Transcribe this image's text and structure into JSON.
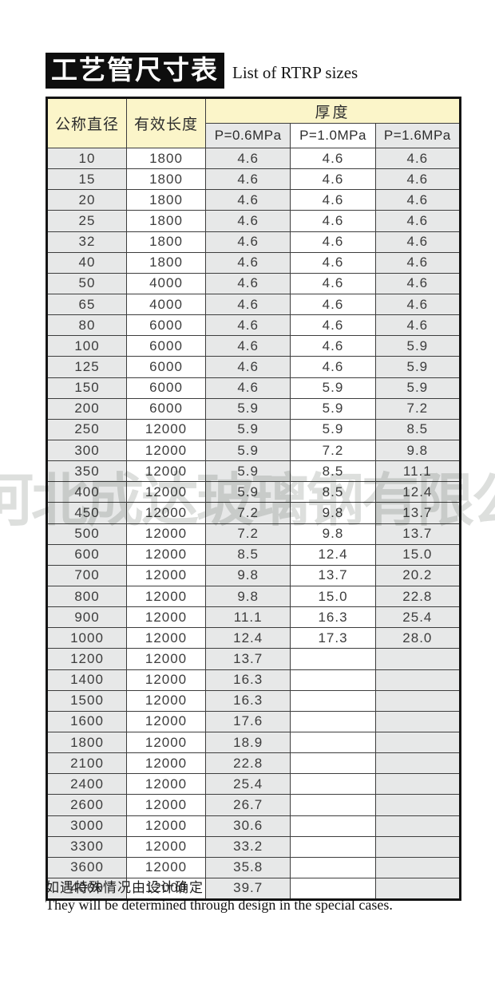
{
  "title": {
    "zh": "工艺管尺寸表",
    "en": "List of RTRP sizes"
  },
  "table": {
    "headers": {
      "diameter": "公称直径",
      "length": "有效长度",
      "thickness_group": "厚度",
      "pressure_cols": [
        "P=0.6MPa",
        "P=1.0MPa",
        "P=1.6MPa"
      ]
    },
    "rows": [
      [
        "10",
        "1800",
        "4.6",
        "4.6",
        "4.6"
      ],
      [
        "15",
        "1800",
        "4.6",
        "4.6",
        "4.6"
      ],
      [
        "20",
        "1800",
        "4.6",
        "4.6",
        "4.6"
      ],
      [
        "25",
        "1800",
        "4.6",
        "4.6",
        "4.6"
      ],
      [
        "32",
        "1800",
        "4.6",
        "4.6",
        "4.6"
      ],
      [
        "40",
        "1800",
        "4.6",
        "4.6",
        "4.6"
      ],
      [
        "50",
        "4000",
        "4.6",
        "4.6",
        "4.6"
      ],
      [
        "65",
        "4000",
        "4.6",
        "4.6",
        "4.6"
      ],
      [
        "80",
        "6000",
        "4.6",
        "4.6",
        "4.6"
      ],
      [
        "100",
        "6000",
        "4.6",
        "4.6",
        "5.9"
      ],
      [
        "125",
        "6000",
        "4.6",
        "4.6",
        "5.9"
      ],
      [
        "150",
        "6000",
        "4.6",
        "5.9",
        "5.9"
      ],
      [
        "200",
        "6000",
        "5.9",
        "5.9",
        "7.2"
      ],
      [
        "250",
        "12000",
        "5.9",
        "5.9",
        "8.5"
      ],
      [
        "300",
        "12000",
        "5.9",
        "7.2",
        "9.8"
      ],
      [
        "350",
        "12000",
        "5.9",
        "8.5",
        "11.1"
      ],
      [
        "400",
        "12000",
        "5.9",
        "8.5",
        "12.4"
      ],
      [
        "450",
        "12000",
        "7.2",
        "9.8",
        "13.7"
      ],
      [
        "500",
        "12000",
        "7.2",
        "9.8",
        "13.7"
      ],
      [
        "600",
        "12000",
        "8.5",
        "12.4",
        "15.0"
      ],
      [
        "700",
        "12000",
        "9.8",
        "13.7",
        "20.2"
      ],
      [
        "800",
        "12000",
        "9.8",
        "15.0",
        "22.8"
      ],
      [
        "900",
        "12000",
        "11.1",
        "16.3",
        "25.4"
      ],
      [
        "1000",
        "12000",
        "12.4",
        "17.3",
        "28.0"
      ],
      [
        "1200",
        "12000",
        "13.7",
        "",
        ""
      ],
      [
        "1400",
        "12000",
        "16.3",
        "",
        ""
      ],
      [
        "1500",
        "12000",
        "16.3",
        "",
        ""
      ],
      [
        "1600",
        "12000",
        "17.6",
        "",
        ""
      ],
      [
        "1800",
        "12000",
        "18.9",
        "",
        ""
      ],
      [
        "2100",
        "12000",
        "22.8",
        "",
        ""
      ],
      [
        "2400",
        "12000",
        "25.4",
        "",
        ""
      ],
      [
        "2600",
        "12000",
        "26.7",
        "",
        ""
      ],
      [
        "3000",
        "12000",
        "30.6",
        "",
        ""
      ],
      [
        "3300",
        "12000",
        "33.2",
        "",
        ""
      ],
      [
        "3600",
        "12000",
        "35.8",
        "",
        ""
      ],
      [
        "4000",
        "12000",
        "39.7",
        "",
        ""
      ]
    ]
  },
  "watermark": "河北成达玻璃钢有限公司",
  "notes": {
    "zh": "如遇特殊情况由设计确定",
    "en": "They will be determined through design in the special cases."
  },
  "colors": {
    "header_bg": "#FBF5C9",
    "shaded_col_bg": "#E7E8E8",
    "border": "#141414",
    "title_box_bg": "#0E0E0E",
    "watermark": "#C6C9C7"
  }
}
